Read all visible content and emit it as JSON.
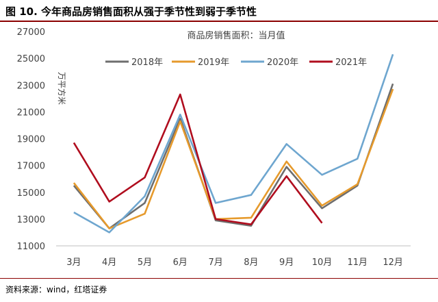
{
  "figure": {
    "title": "图 10. 今年商品房销售面积从强于季节性到弱于季节性",
    "source": "资料来源：wind，红塔证券"
  },
  "chart_data": {
    "type": "line",
    "title": "商品房销售面积：当月值",
    "ylabel": "万平方米",
    "xlabel": "",
    "categories": [
      "3月",
      "4月",
      "5月",
      "6月",
      "7月",
      "8月",
      "9月",
      "10月",
      "11月",
      "12月"
    ],
    "ylim": [
      11000,
      27000
    ],
    "yticks": [
      11000,
      13000,
      15000,
      17000,
      19000,
      21000,
      23000,
      25000,
      27000
    ],
    "grid": false,
    "legend": "top",
    "series": [
      {
        "name": "2018年",
        "color": "#6e6e6e",
        "values": [
          15500,
          12300,
          14200,
          20500,
          12900,
          12500,
          16900,
          13800,
          15500,
          23100
        ]
      },
      {
        "name": "2019年",
        "color": "#e69a2c",
        "values": [
          15700,
          12300,
          13400,
          20300,
          13000,
          13100,
          17300,
          14000,
          15600,
          22700
        ]
      },
      {
        "name": "2020年",
        "color": "#6ea6cf",
        "values": [
          13500,
          12000,
          14700,
          20800,
          14200,
          14800,
          18600,
          16300,
          17500,
          25300
        ]
      },
      {
        "name": "2021年",
        "color": "#b00d1e",
        "values": [
          18700,
          14300,
          16100,
          22300,
          13000,
          12600,
          16200,
          12700,
          null,
          null
        ]
      }
    ]
  }
}
